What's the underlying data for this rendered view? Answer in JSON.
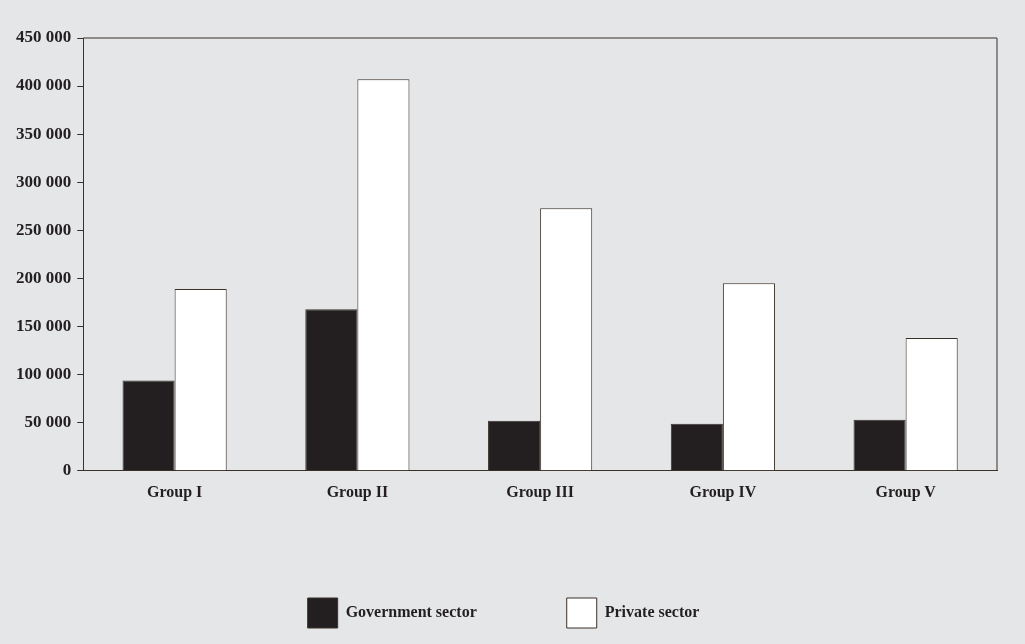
{
  "chart_data": {
    "type": "bar",
    "categories": [
      "Group I",
      "Group II",
      "Group III",
      "Group IV",
      "Group V"
    ],
    "series": [
      {
        "name": "Government sector",
        "color": "#231f20",
        "values": [
          94000,
          168000,
          52000,
          49000,
          53000
        ]
      },
      {
        "name": "Private sector",
        "color": "#ffffff",
        "values": [
          189000,
          407000,
          273000,
          195000,
          138000
        ]
      }
    ],
    "ylim": [
      0,
      450000
    ],
    "yticks": [
      0,
      50000,
      100000,
      150000,
      200000,
      250000,
      300000,
      350000,
      400000,
      450000
    ],
    "grid": false,
    "legend": "bottom"
  }
}
